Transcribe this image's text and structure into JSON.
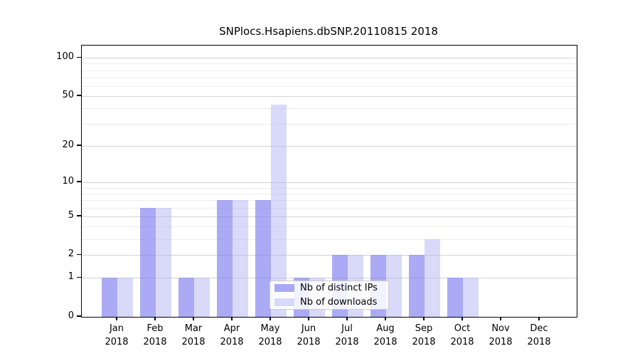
{
  "chart_data": {
    "type": "bar",
    "title": "SNPlocs.Hsapiens.dbSNP.20110815 2018",
    "categories": [
      "Jan",
      "Feb",
      "Mar",
      "Apr",
      "May",
      "Jun",
      "Jul",
      "Aug",
      "Sep",
      "Oct",
      "Nov",
      "Dec"
    ],
    "year": "2018",
    "series": [
      {
        "name": "Nb of distinct IPs",
        "color": "#a9a9f3",
        "values": [
          1,
          6,
          1,
          7,
          7,
          1,
          2,
          2,
          2,
          1,
          0,
          0
        ]
      },
      {
        "name": "Nb of downloads",
        "color": "#d9d9f9",
        "values": [
          1,
          6,
          1,
          7,
          43,
          1,
          2,
          2,
          3,
          1,
          0,
          0
        ]
      }
    ],
    "y_ticks": [
      0,
      1,
      2,
      5,
      10,
      20,
      50,
      100
    ],
    "y_minor_gridlines": [
      3,
      4,
      6,
      7,
      8,
      9,
      30,
      40,
      60,
      70,
      80,
      90
    ],
    "scale": "log1p",
    "ylim": [
      0,
      120
    ],
    "xlabel": "",
    "ylabel": "",
    "grid": true,
    "legend_position": "bottom-center",
    "colors": {
      "bar_ips": "#aaaaf0",
      "bar_downloads": "#dcdcf8",
      "grid_major": "#d3d3d3",
      "grid_minor": "#ededed",
      "frame": "#000000"
    }
  }
}
